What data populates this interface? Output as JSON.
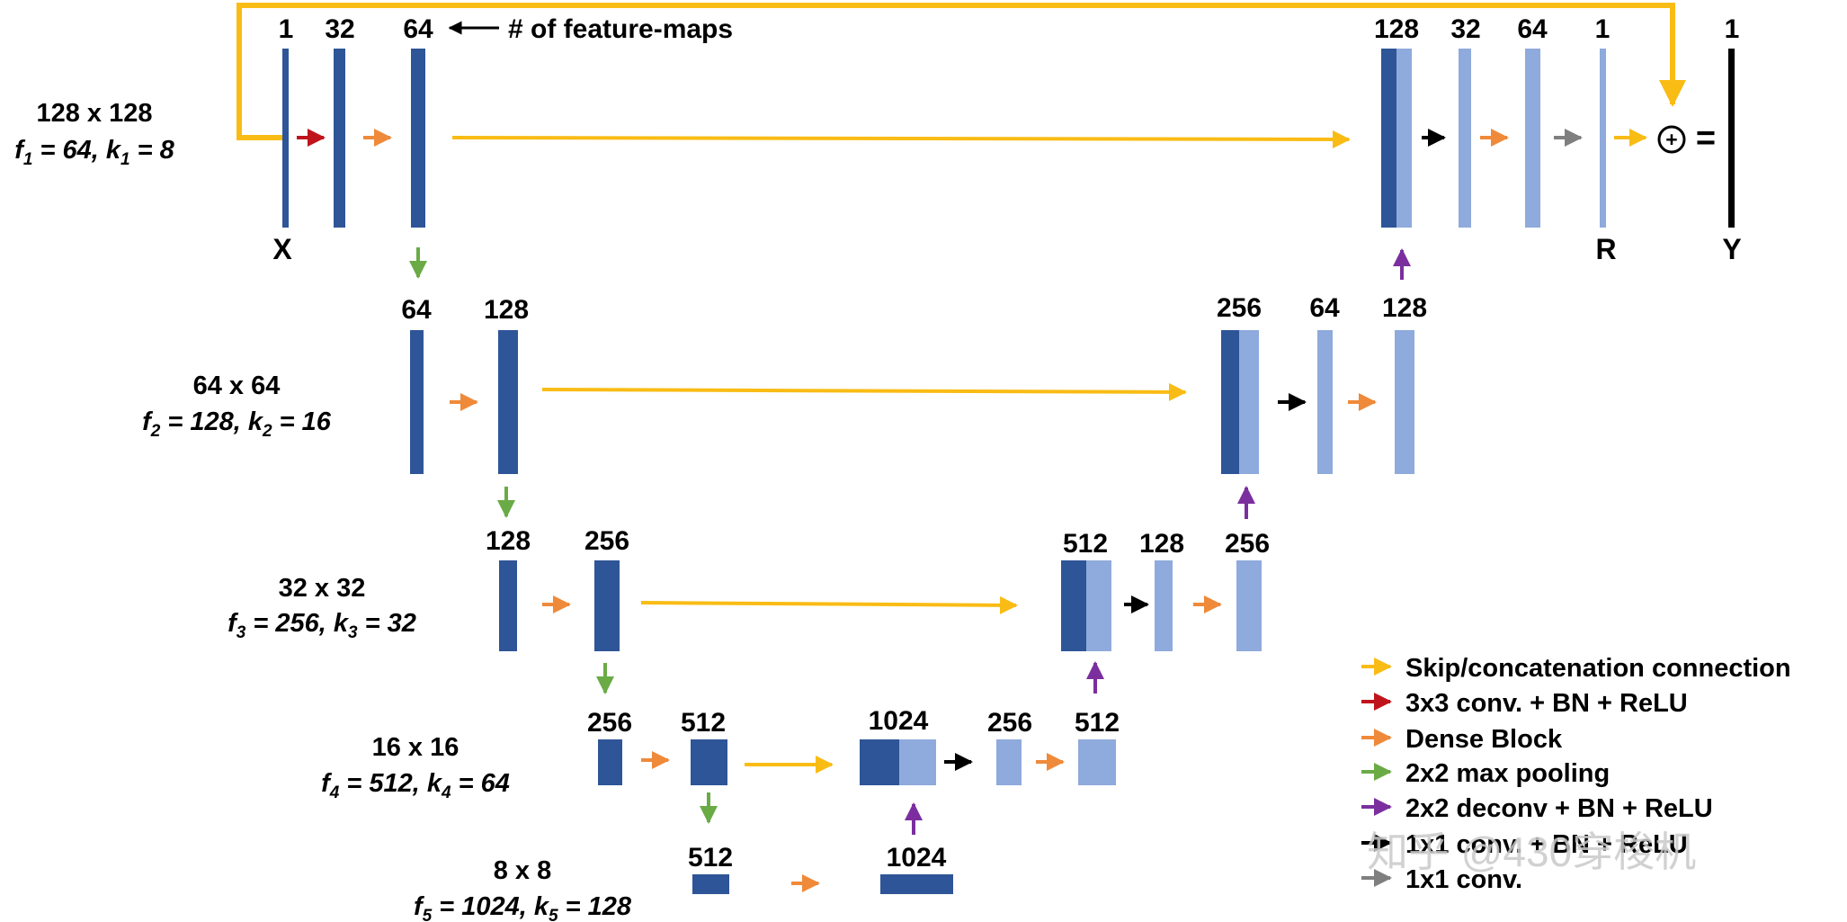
{
  "diagram": {
    "title_note": "# of feature-maps",
    "input_label": "X",
    "residual_label": "R",
    "output_label": "Y",
    "plus_symbol": "+",
    "equals_symbol": "=",
    "levels": [
      {
        "size": "128 x 128",
        "params": [
          {
            "base": "f",
            "sub": "1",
            "val": "64"
          },
          {
            "base": "k",
            "sub": "1",
            "val": "8"
          }
        ]
      },
      {
        "size": "64 x 64",
        "params": [
          {
            "base": "f",
            "sub": "2",
            "val": "128"
          },
          {
            "base": "k",
            "sub": "2",
            "val": "16"
          }
        ]
      },
      {
        "size": "32 x 32",
        "params": [
          {
            "base": "f",
            "sub": "3",
            "val": "256"
          },
          {
            "base": "k",
            "sub": "3",
            "val": "32"
          }
        ]
      },
      {
        "size": "16 x 16",
        "params": [
          {
            "base": "f",
            "sub": "4",
            "val": "512"
          },
          {
            "base": "k",
            "sub": "4",
            "val": "64"
          }
        ]
      },
      {
        "size": "8 x 8",
        "params": [
          {
            "base": "f",
            "sub": "5",
            "val": "1024"
          },
          {
            "base": "k",
            "sub": "5",
            "val": "128"
          }
        ]
      }
    ],
    "feature_counts": {
      "l1_enc": [
        "1",
        "32",
        "64"
      ],
      "l1_dec": [
        "128",
        "32",
        "64",
        "1",
        "1"
      ],
      "l2_enc": [
        "64",
        "128"
      ],
      "l2_dec": [
        "256",
        "64",
        "128"
      ],
      "l3_enc": [
        "128",
        "256"
      ],
      "l3_dec": [
        "512",
        "128",
        "256"
      ],
      "l4_enc": [
        "256",
        "512"
      ],
      "l4_dec": [
        "1024",
        "256",
        "512"
      ],
      "l5": [
        "512",
        "1024"
      ]
    },
    "legend": [
      {
        "label": "Skip/concatenation connection",
        "color": "#f9bc15"
      },
      {
        "label": "3x3 conv. + BN + ReLU",
        "color": "#c0141c"
      },
      {
        "label": "Dense Block",
        "color": "#ef8a3a"
      },
      {
        "label": "2x2 max pooling",
        "color": "#6aab46"
      },
      {
        "label": "2x2 deconv + BN + ReLU",
        "color": "#7b2f9e"
      },
      {
        "label": "1x1 conv. + BN + ReLU",
        "color": "#000000"
      },
      {
        "label": "1x1 conv.",
        "color": "#7f7f7f"
      }
    ],
    "watermark": "知乎 @430穿梭机",
    "colors": {
      "dark": "#2e5597",
      "light": "#8faadc",
      "skip": "#f9bc15",
      "red": "#c0141c",
      "orange": "#ef8a3a",
      "green": "#6aab46",
      "purple": "#7b2f9e",
      "black": "#000000",
      "gray": "#7f7f7f"
    }
  }
}
